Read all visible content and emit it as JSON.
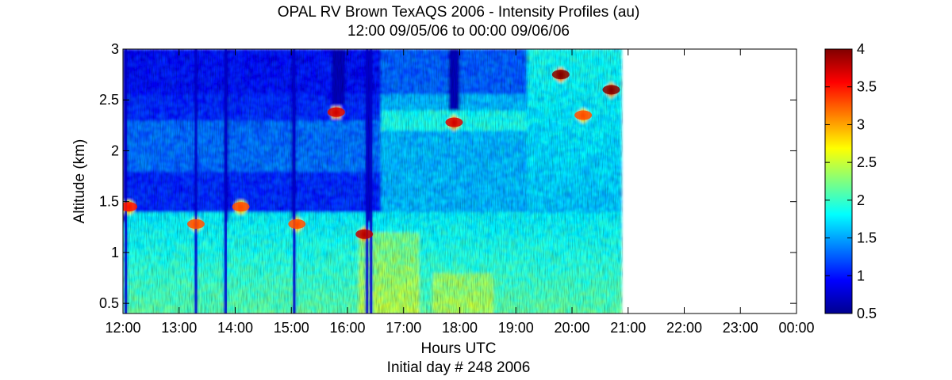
{
  "chart_data": {
    "type": "heatmap",
    "title": "OPAL RV Brown TexAQS 2006 - Intensity Profiles (au)",
    "subtitle": "12:00 09/05/06 to 00:00 09/06/06",
    "xlabel": "Hours UTC",
    "ylabel": "Altitude (km)",
    "footer": "Initial day # 248  2006",
    "x_ticks": [
      "12:00",
      "13:00",
      "14:00",
      "15:00",
      "16:00",
      "17:00",
      "18:00",
      "19:00",
      "20:00",
      "21:00",
      "22:00",
      "23:00",
      "00:00"
    ],
    "x_range_hours": [
      12,
      24
    ],
    "data_end_hour": 20.9,
    "y_ticks": [
      "0.5",
      "1",
      "1.5",
      "2",
      "2.5",
      "3"
    ],
    "ylim": [
      0.4,
      3.0
    ],
    "colorbar": {
      "ticks": [
        "0.5",
        "1",
        "1.5",
        "2",
        "2.5",
        "3",
        "3.5",
        "4"
      ],
      "range": [
        0.5,
        4.0
      ],
      "colormap": "jet"
    },
    "features": {
      "boundary_layer_top_km": 1.4,
      "elevated_layer_km": [
        2.2,
        2.4
      ],
      "dark_columns_hours": [
        12.05,
        13.3,
        13.83,
        15.05,
        16.35,
        16.42
      ],
      "high_intensity_patches": [
        {
          "hour": 12.1,
          "alt_km": 1.45,
          "value": 3.5
        },
        {
          "hour": 13.3,
          "alt_km": 1.28,
          "value": 3.3
        },
        {
          "hour": 14.1,
          "alt_km": 1.45,
          "value": 3.3
        },
        {
          "hour": 15.1,
          "alt_km": 1.28,
          "value": 3.3
        },
        {
          "hour": 15.8,
          "alt_km": 2.38,
          "value": 3.7
        },
        {
          "hour": 16.3,
          "alt_km": 1.18,
          "value": 3.8
        },
        {
          "hour": 17.9,
          "alt_km": 2.28,
          "value": 3.7
        },
        {
          "hour": 19.8,
          "alt_km": 2.75,
          "value": 4.0
        },
        {
          "hour": 20.2,
          "alt_km": 2.35,
          "value": 3.3
        },
        {
          "hour": 20.7,
          "alt_km": 2.6,
          "value": 4.0
        }
      ]
    }
  }
}
